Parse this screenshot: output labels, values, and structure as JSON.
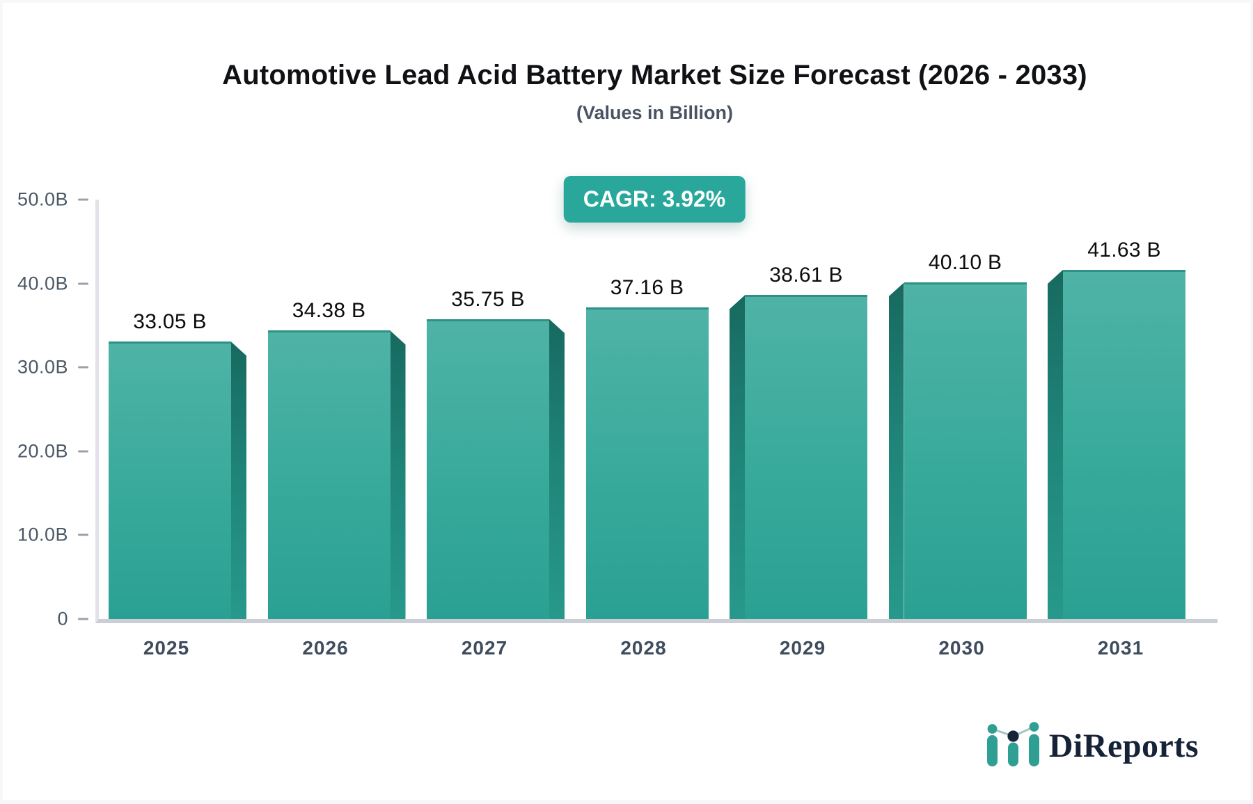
{
  "page": {
    "background": "#f7f7f9",
    "card_background": "#ffffff"
  },
  "header": {
    "title": "Automotive Lead Acid Battery Market Size Forecast (2026 - 2033)",
    "subtitle": "(Values in Billion)"
  },
  "badge": {
    "label": "CAGR: 3.92%",
    "color": "#2aa79b"
  },
  "chart_data": {
    "type": "bar",
    "title": "Automotive Lead Acid Battery Market Size Forecast (2026 - 2033)",
    "subtitle": "(Values in Billion)",
    "annotation": "CAGR: 3.92%",
    "categories": [
      "2025",
      "2026",
      "2027",
      "2028",
      "2029",
      "2030",
      "2031"
    ],
    "values": [
      33.05,
      34.38,
      35.75,
      37.16,
      38.61,
      40.1,
      41.63
    ],
    "value_labels": [
      "33.05 B",
      "34.38 B",
      "35.75 B",
      "37.16 B",
      "38.61 B",
      "40.10 B",
      "41.63 B"
    ],
    "xlabel": "",
    "ylabel": "",
    "ylim": [
      0,
      50
    ],
    "ytick_labels": [
      "0",
      "10.0B",
      "20.0B",
      "30.0B",
      "40.0B",
      "50.0B"
    ],
    "grid": false,
    "legend": false,
    "bar_color_top": "#4fb3a6",
    "bar_color_bottom": "#2aa093",
    "bar_side_color": "#1f8378",
    "perspective": "center-vanishing-3d"
  },
  "logo": {
    "text": "DiReports",
    "icon": "mini-bar-chart-icon",
    "text_color": "#152238",
    "accent_color": "#2f9e93"
  }
}
